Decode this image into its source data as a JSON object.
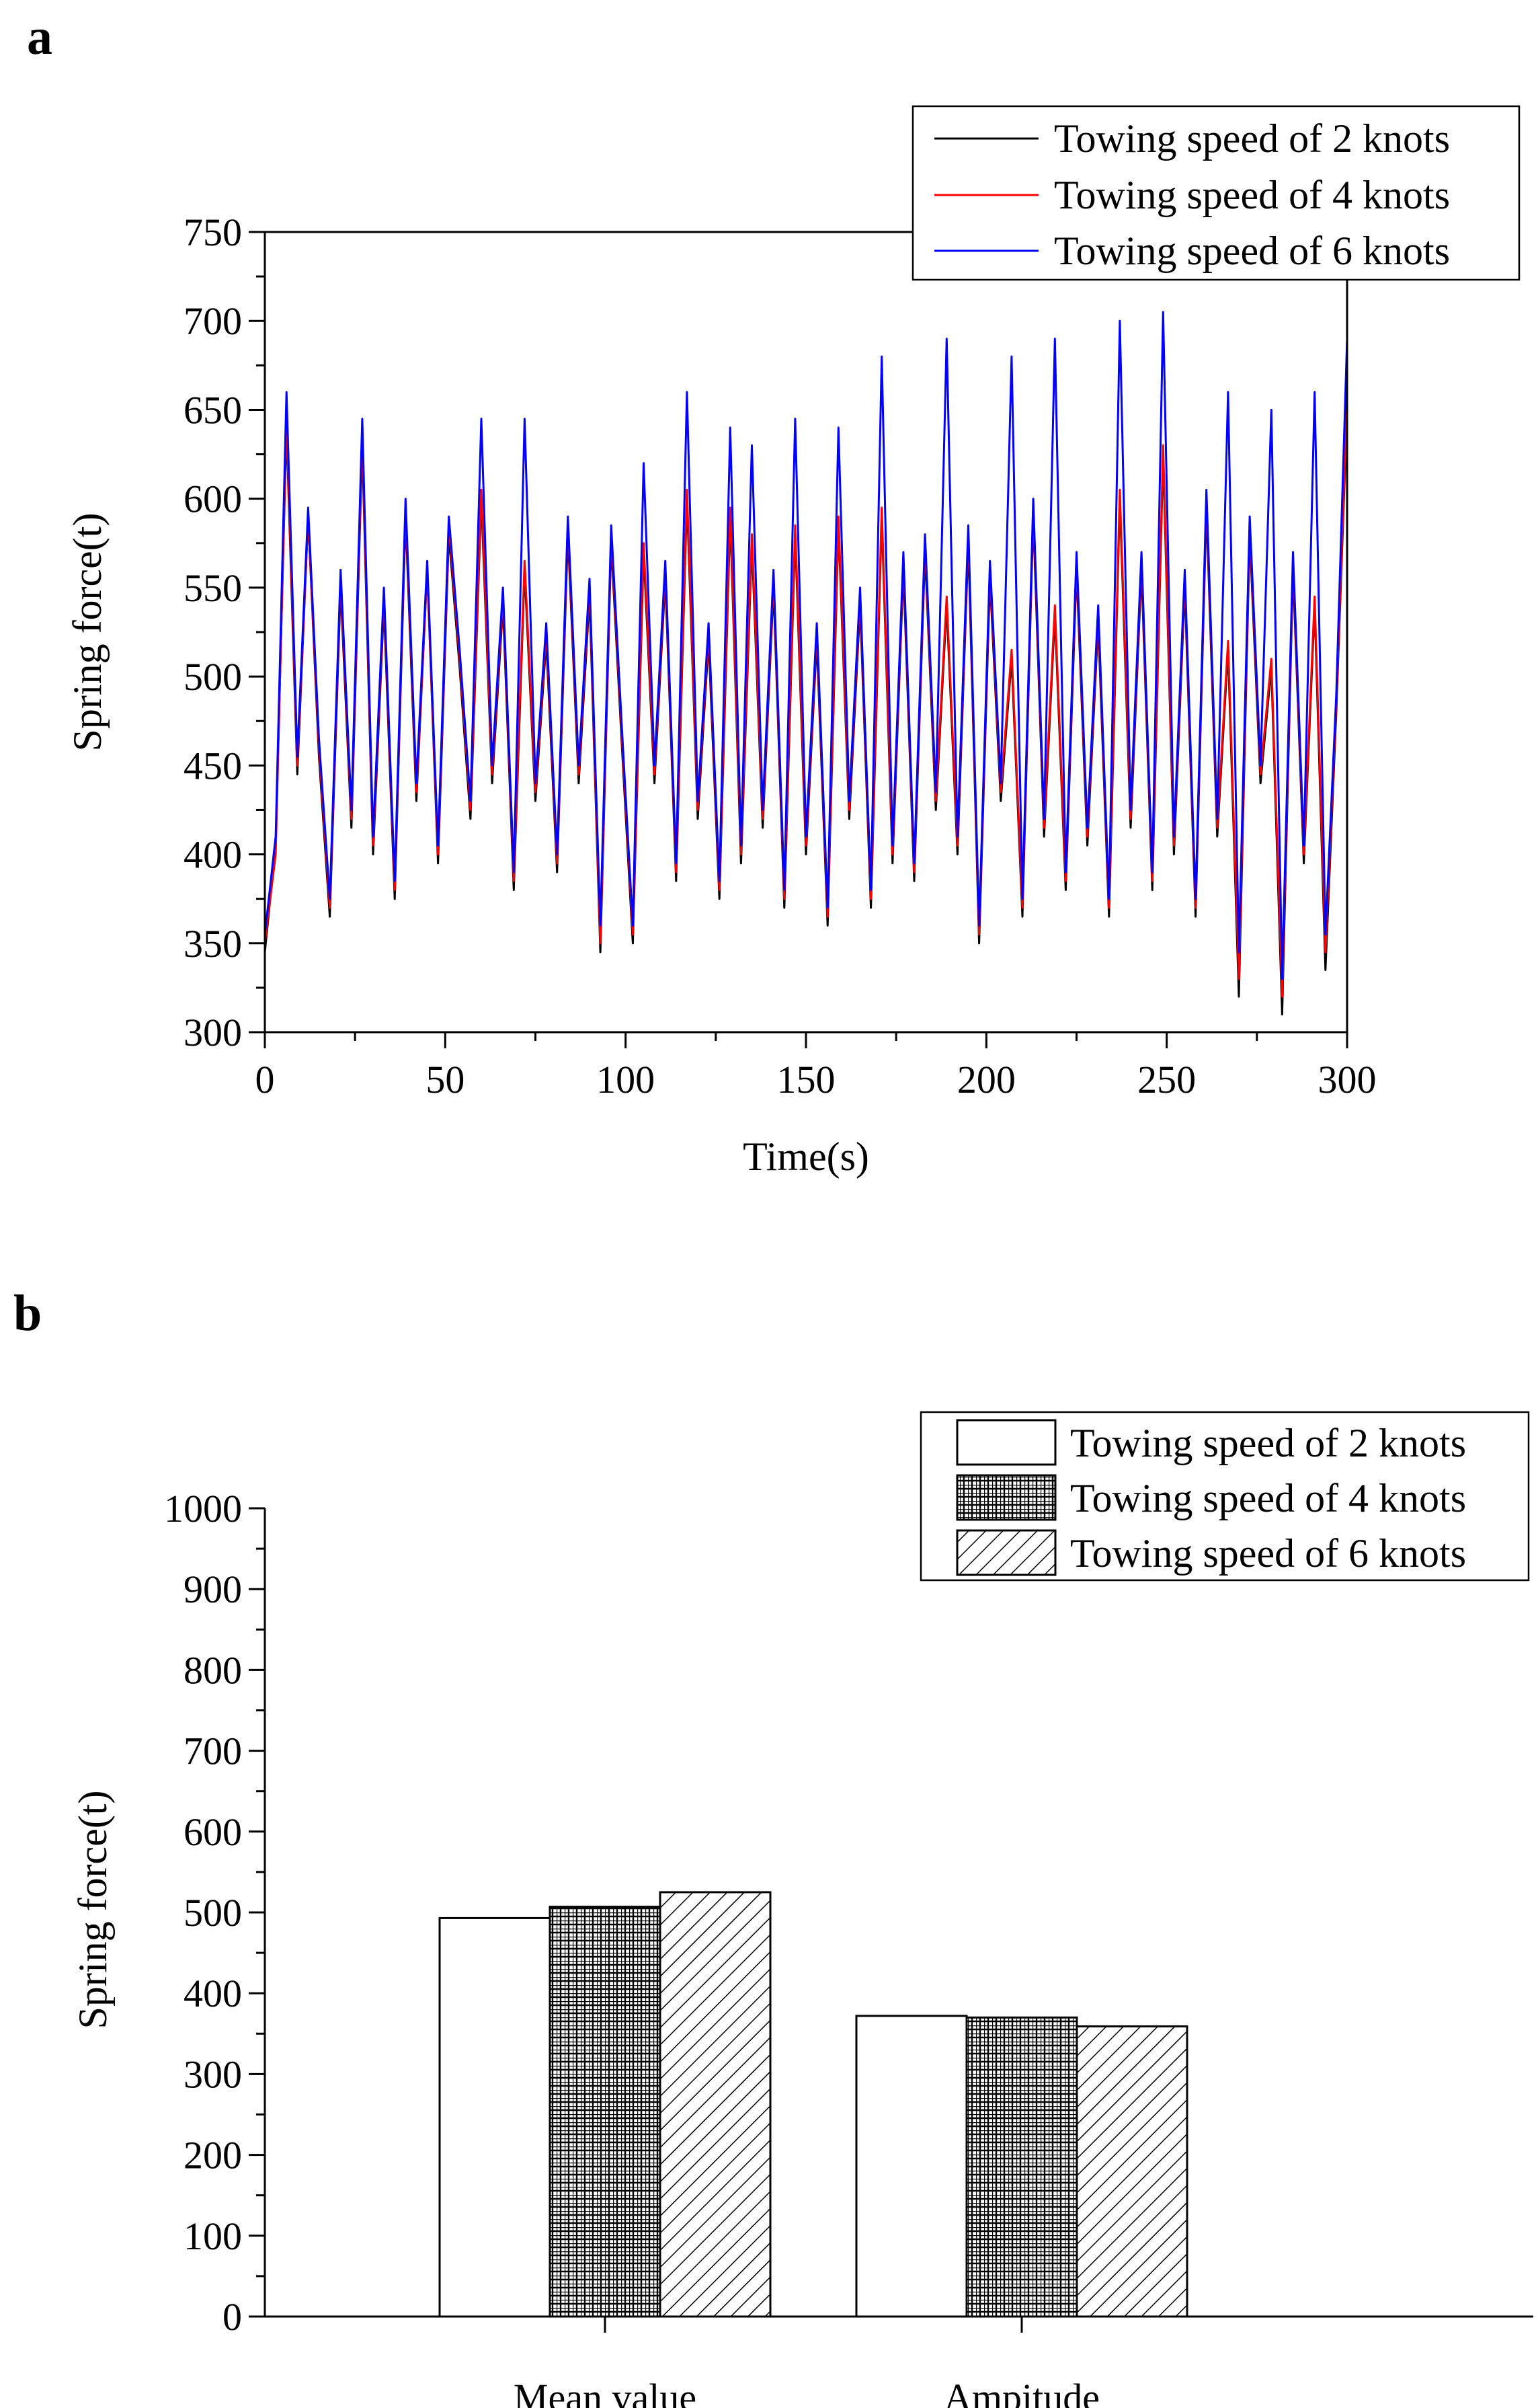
{
  "panels": {
    "a_label": "a",
    "b_label": "b"
  },
  "chart_data": [
    {
      "type": "line",
      "title": "",
      "xlabel": "Time(s)",
      "ylabel": "Spring force(t)",
      "xlim": [
        0,
        300
      ],
      "ylim": [
        300,
        750
      ],
      "xticks": [
        0,
        50,
        100,
        150,
        200,
        250,
        300
      ],
      "yticks": [
        300,
        350,
        400,
        450,
        500,
        550,
        600,
        650,
        700,
        750
      ],
      "legend_position": "top-right",
      "grid": false,
      "x": [
        0,
        3,
        6,
        9,
        12,
        15,
        18,
        21,
        24,
        27,
        30,
        33,
        36,
        39,
        42,
        45,
        48,
        51,
        54,
        57,
        60,
        63,
        66,
        69,
        72,
        75,
        78,
        81,
        84,
        87,
        90,
        93,
        96,
        99,
        102,
        105,
        108,
        111,
        114,
        117,
        120,
        123,
        126,
        129,
        132,
        135,
        138,
        141,
        144,
        147,
        150,
        153,
        156,
        159,
        162,
        165,
        168,
        171,
        174,
        177,
        180,
        183,
        186,
        189,
        192,
        195,
        198,
        201,
        204,
        207,
        210,
        213,
        216,
        219,
        222,
        225,
        228,
        231,
        234,
        237,
        240,
        243,
        246,
        249,
        252,
        255,
        258,
        261,
        264,
        267,
        270,
        273,
        276,
        279,
        282,
        285,
        288,
        291,
        294,
        297,
        300
      ],
      "series": [
        {
          "name": "Towing speed of 2 knots",
          "color": "#000000",
          "values": [
            345,
            405,
            640,
            445,
            590,
            455,
            365,
            550,
            415,
            630,
            400,
            540,
            375,
            590,
            430,
            560,
            395,
            580,
            505,
            420,
            600,
            440,
            540,
            380,
            560,
            430,
            520,
            390,
            580,
            440,
            545,
            345,
            575,
            460,
            350,
            570,
            440,
            555,
            385,
            600,
            420,
            520,
            375,
            590,
            395,
            575,
            415,
            550,
            370,
            580,
            400,
            520,
            360,
            585,
            420,
            540,
            370,
            590,
            395,
            560,
            385,
            570,
            425,
            540,
            400,
            575,
            350,
            555,
            430,
            510,
            365,
            590,
            410,
            535,
            380,
            560,
            405,
            530,
            365,
            600,
            415,
            560,
            380,
            625,
            400,
            550,
            365,
            595,
            410,
            515,
            320,
            580,
            440,
            505,
            310,
            560,
            395,
            540,
            335,
            480,
            650
          ]
        },
        {
          "name": "Towing speed of 4 knots",
          "color": "#ff0000",
          "values": [
            350,
            400,
            645,
            450,
            590,
            460,
            370,
            555,
            420,
            635,
            405,
            545,
            380,
            595,
            435,
            560,
            400,
            585,
            510,
            425,
            605,
            445,
            545,
            385,
            565,
            435,
            525,
            395,
            585,
            445,
            550,
            350,
            580,
            465,
            355,
            575,
            445,
            560,
            390,
            605,
            425,
            525,
            380,
            595,
            400,
            580,
            420,
            555,
            375,
            585,
            405,
            525,
            365,
            590,
            425,
            545,
            375,
            595,
            400,
            565,
            390,
            575,
            430,
            545,
            405,
            580,
            355,
            560,
            435,
            515,
            370,
            595,
            415,
            540,
            385,
            565,
            410,
            535,
            370,
            605,
            420,
            565,
            385,
            630,
            405,
            555,
            370,
            600,
            415,
            520,
            330,
            585,
            445,
            510,
            320,
            565,
            400,
            545,
            345,
            485,
            655
          ]
        },
        {
          "name": "Towing speed of 6 knots",
          "color": "#0000ff",
          "values": [
            355,
            410,
            660,
            455,
            595,
            465,
            375,
            560,
            425,
            645,
            410,
            550,
            385,
            600,
            440,
            565,
            405,
            590,
            515,
            430,
            645,
            450,
            550,
            390,
            645,
            440,
            530,
            400,
            590,
            450,
            555,
            360,
            585,
            470,
            360,
            620,
            450,
            565,
            395,
            660,
            430,
            530,
            385,
            640,
            405,
            630,
            425,
            560,
            380,
            645,
            410,
            530,
            370,
            640,
            430,
            550,
            380,
            680,
            405,
            570,
            395,
            580,
            435,
            690,
            410,
            585,
            360,
            565,
            440,
            680,
            375,
            600,
            420,
            690,
            390,
            570,
            415,
            540,
            375,
            700,
            425,
            570,
            390,
            705,
            410,
            560,
            375,
            605,
            420,
            660,
            345,
            590,
            450,
            650,
            330,
            570,
            405,
            660,
            355,
            490,
            690
          ]
        }
      ]
    },
    {
      "type": "bar",
      "title": "",
      "xlabel": "",
      "ylabel": "Spring force(t)",
      "categories": [
        "Mean value",
        "Ampitude"
      ],
      "ylim": [
        0,
        1000
      ],
      "yticks": [
        0,
        100,
        200,
        300,
        400,
        500,
        600,
        700,
        800,
        900,
        1000
      ],
      "legend_position": "top-right",
      "grid": false,
      "series": [
        {
          "name": "Towing speed of 2 knots",
          "pattern": "empty",
          "values": [
            493,
            372
          ]
        },
        {
          "name": "Towing speed of 4 knots",
          "pattern": "grid",
          "values": [
            507,
            370
          ]
        },
        {
          "name": "Towing speed of 6 knots",
          "pattern": "hatch",
          "values": [
            525,
            359
          ]
        }
      ]
    }
  ]
}
